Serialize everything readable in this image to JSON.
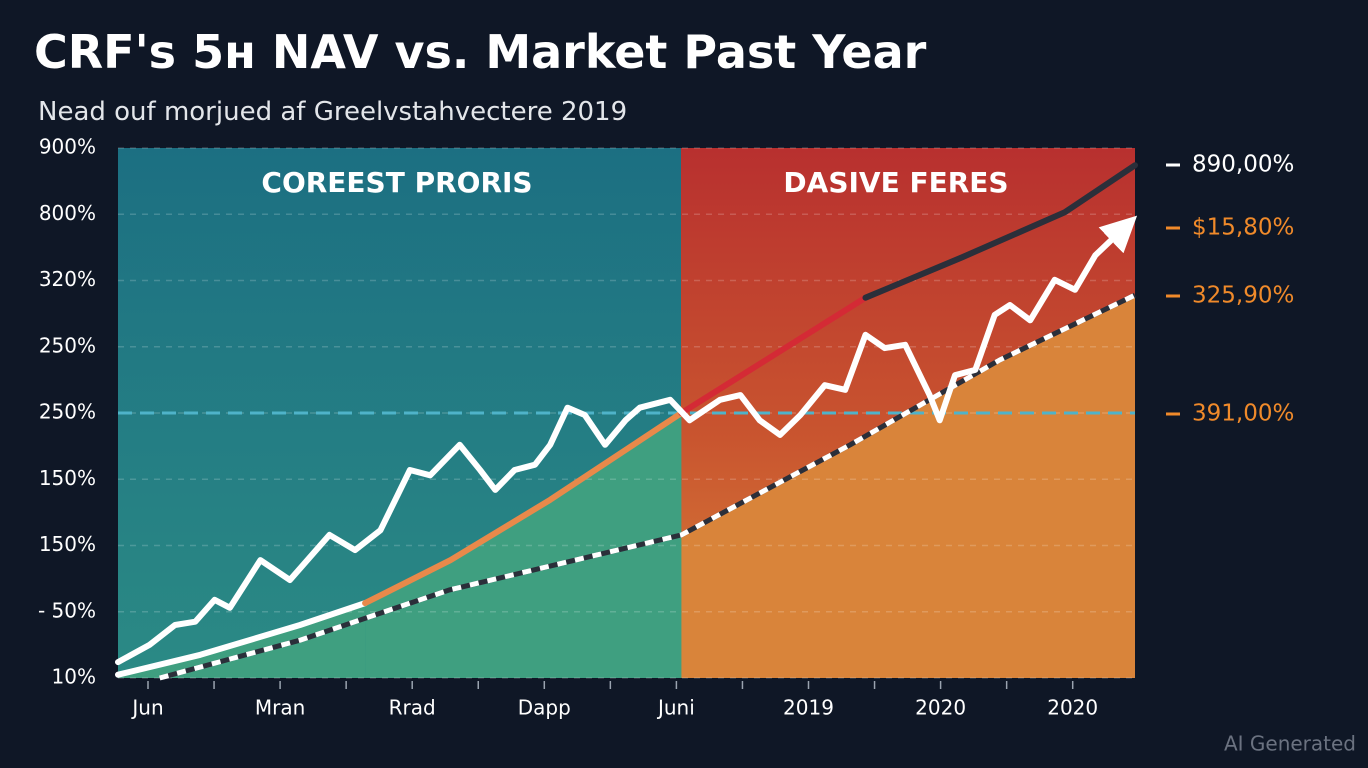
{
  "chart_data": {
    "type": "line",
    "title": "CRF's 5ʜ NAV vs. Market Past Year",
    "subtitle": "Nead ouf morjued af Greelvstahvectere 2019",
    "watermark": "AI Generated",
    "regions": [
      {
        "label": "COREEST PRORIS"
      },
      {
        "label": "DASIVE FERES"
      }
    ],
    "categories": [
      "Jun",
      "Mran",
      "Rrad",
      "Dapp",
      "Juni",
      "2019",
      "2020",
      "2020"
    ],
    "xlim": [
      0,
      100
    ],
    "ylim": [
      0,
      8
    ],
    "yticks": [
      {
        "value": 0,
        "label": "10%"
      },
      {
        "value": 1,
        "label": "- 50%"
      },
      {
        "value": 2,
        "label": "150%"
      },
      {
        "value": 3,
        "label": "150%"
      },
      {
        "value": 4,
        "label": "250%"
      },
      {
        "value": 5,
        "label": "250%"
      },
      {
        "value": 6,
        "label": "320%"
      },
      {
        "value": 7,
        "label": "800%"
      },
      {
        "value": 8,
        "label": "900%"
      }
    ],
    "grid": true,
    "reference_line": {
      "value": 4,
      "color": "#4fb3c9"
    },
    "series": [
      {
        "color": "#ffffff",
        "dash": true,
        "fill": "#d9843a",
        "x": [
          4.1,
          17.9,
          32.6,
          55.4,
          72,
          86.7,
          100
        ],
        "values": [
          0,
          0.57,
          1.33,
          2.16,
          3.52,
          4.8,
          5.78
        ]
      },
      {
        "color": "#ffffff",
        "fill": "#3f9f80",
        "x": [
          0,
          8.1,
          17.9,
          24.3
        ],
        "values": [
          0.05,
          0.35,
          0.8,
          1.13
        ]
      },
      {
        "color": "#e8894a",
        "fill": "#3f9f80",
        "x": [
          24.3,
          32.7,
          42.5,
          55.4
        ],
        "values": [
          1.13,
          1.78,
          2.69,
          4.0
        ]
      },
      {
        "color": "#d42a35",
        "x": [
          55.4,
          73.5
        ],
        "values": [
          4.0,
          5.74
        ]
      },
      {
        "color": "#2b2f3a",
        "x": [
          73.5,
          83,
          93.1,
          100
        ],
        "values": [
          5.74,
          6.35,
          7.03,
          7.74
        ]
      },
      {
        "color": "#ffffff",
        "arrow": true,
        "x": [
          0,
          3.1,
          5.6,
          7.6,
          9.5,
          11,
          14,
          16.9,
          20.8,
          23.3,
          25.8,
          28.7,
          30.7,
          33.6,
          35.6,
          37.1,
          39,
          41,
          42.5,
          44.2,
          45.9,
          47.9,
          49.9,
          51.3,
          54.3,
          56.2,
          59.2,
          61.2,
          63.1,
          65.1,
          67.1,
          69.5,
          71.5,
          73.5,
          75.4,
          77.4,
          79.8,
          80.8,
          82.3,
          84.3,
          86.2,
          87.7,
          89.7,
          92.1,
          94.1,
          96.1,
          98.5
        ],
        "values": [
          0.24,
          0.5,
          0.8,
          0.85,
          1.18,
          1.06,
          1.78,
          1.48,
          2.16,
          1.93,
          2.23,
          3.14,
          3.06,
          3.52,
          3.14,
          2.84,
          3.14,
          3.22,
          3.52,
          4.08,
          3.97,
          3.52,
          3.89,
          4.08,
          4.2,
          3.89,
          4.2,
          4.27,
          3.89,
          3.67,
          3.97,
          4.42,
          4.35,
          5.18,
          4.98,
          5.03,
          4.27,
          3.89,
          4.57,
          4.65,
          5.48,
          5.63,
          5.4,
          6.01,
          5.86,
          6.38,
          6.73
        ]
      }
    ],
    "annotations": [
      {
        "text": "890,00%",
        "color": "#ffffff"
      },
      {
        "text": "$15,80%",
        "color": "#f08a2a"
      },
      {
        "text": "325,90%",
        "color": "#f08a2a"
      },
      {
        "text": "391,00%",
        "color": "#f08a2a"
      }
    ]
  }
}
